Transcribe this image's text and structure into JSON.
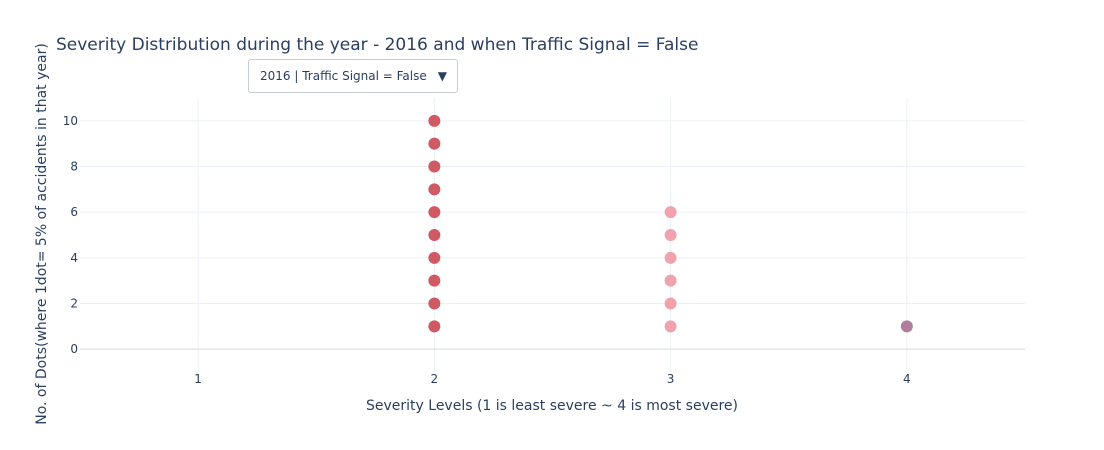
{
  "dropdown": {
    "selected_label": "2016 | Traffic Signal = False",
    "arrow": "▼"
  },
  "chart_data": {
    "type": "scatter",
    "title": "Severity Distribution during the year - 2016 and when Traffic Signal = False",
    "xlabel": "Severity Levels (1 is least severe ~ 4 is most severe)",
    "ylabel": "No. of Dots(where 1dot= 5% of accidents in that year)",
    "x_ticks": [
      "1",
      "2",
      "3",
      "4"
    ],
    "y_ticks": [
      "0",
      "2",
      "4",
      "6",
      "8",
      "10"
    ],
    "xlim": [
      0.5,
      4.5
    ],
    "ylim": [
      -1,
      11
    ],
    "grid": true,
    "series": [
      {
        "x": 2,
        "y": [
          1,
          2,
          3,
          4,
          5,
          6,
          7,
          8,
          9,
          10
        ],
        "color": "#d05a64"
      },
      {
        "x": 3,
        "y": [
          1,
          2,
          3,
          4,
          5,
          6
        ],
        "color": "#f0a3ad"
      },
      {
        "x": 4,
        "y": [
          1
        ],
        "color": "#b07d9f"
      }
    ]
  }
}
